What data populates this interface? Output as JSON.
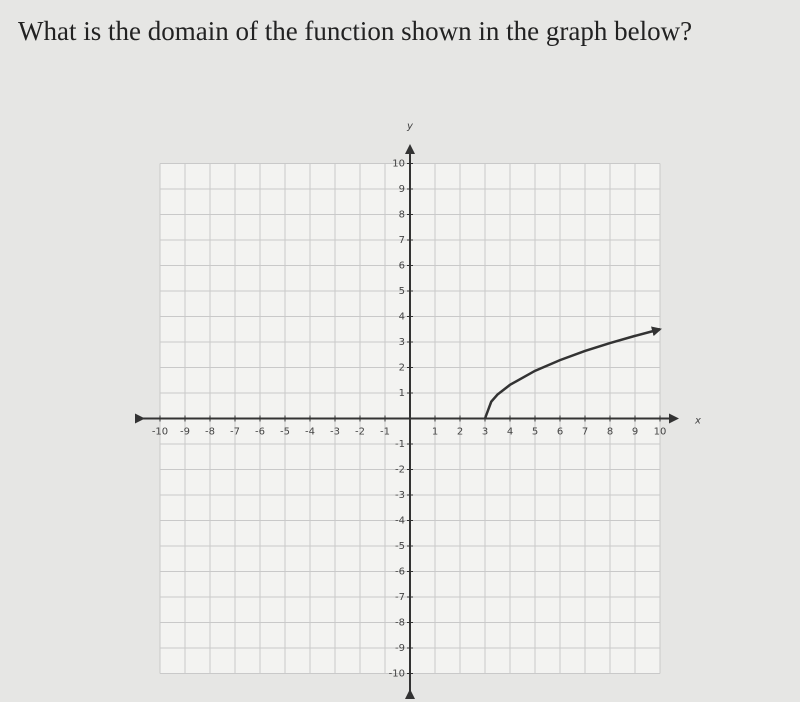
{
  "question": "What is the domain of the function shown in the graph below?",
  "chart_data": {
    "type": "line",
    "xlabel": "x",
    "ylabel": "y",
    "xlim": [
      -11,
      11
    ],
    "ylim": [
      -11,
      11
    ],
    "xticks": [
      -10,
      -9,
      -8,
      -7,
      -6,
      -5,
      -4,
      -3,
      -2,
      -1,
      1,
      2,
      3,
      4,
      5,
      6,
      7,
      8,
      9,
      10
    ],
    "yticks": [
      -10,
      -9,
      -8,
      -7,
      -6,
      -5,
      -4,
      -3,
      -2,
      -1,
      1,
      2,
      3,
      4,
      5,
      6,
      7,
      8,
      9,
      10
    ],
    "grid": true,
    "x": [
      3,
      3.25,
      3.5,
      4,
      5,
      6,
      7,
      8,
      9,
      10
    ],
    "series": [
      {
        "color": "#333333",
        "values": [
          0,
          0.66,
          0.94,
          1.32,
          1.87,
          2.29,
          2.65,
          2.96,
          3.24,
          3.5
        ]
      }
    ]
  }
}
